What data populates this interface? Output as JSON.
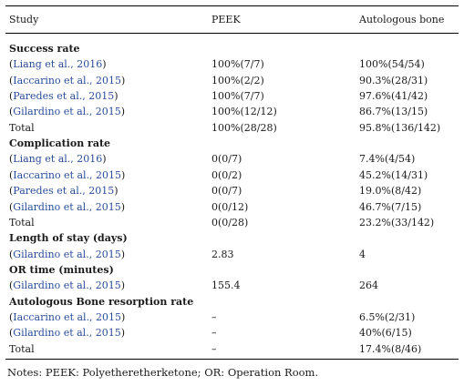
{
  "table": {
    "headers": [
      "Study",
      "PEEK",
      "Autologous bone"
    ],
    "sections": [
      {
        "title": "Success rate",
        "rows": [
          {
            "study": "Liang et al., 2016",
            "cite": true,
            "peek": "100%(7/7)",
            "bone": "100%(54/54)"
          },
          {
            "study": "Iaccarino et al., 2015",
            "cite": true,
            "peek": "100%(2/2)",
            "bone": "90.3%(28/31)"
          },
          {
            "study": "Paredes et al., 2015",
            "cite": true,
            "peek": "100%(7/7)",
            "bone": "97.6%(41/42)"
          },
          {
            "study": "Gilardino et al., 2015",
            "cite": true,
            "peek": "100%(12/12)",
            "bone": "86.7%(13/15)"
          },
          {
            "study": "Total",
            "cite": false,
            "peek": "100%(28/28)",
            "bone": "95.8%(136/142)"
          }
        ]
      },
      {
        "title": "Complication rate",
        "rows": [
          {
            "study": "Liang et al., 2016",
            "cite": true,
            "peek": "0(0/7)",
            "bone": "7.4%(4/54)"
          },
          {
            "study": "Iaccarino et al., 2015",
            "cite": true,
            "peek": "0(0/2)",
            "bone": "45.2%(14/31)"
          },
          {
            "study": "Paredes et al., 2015",
            "cite": true,
            "peek": "0(0/7)",
            "bone": "19.0%(8/42)"
          },
          {
            "study": "Gilardino et al., 2015",
            "cite": true,
            "peek": "0(0/12)",
            "bone": "46.7%(7/15)"
          },
          {
            "study": "Total",
            "cite": false,
            "peek": "0(0/28)",
            "bone": "23.2%(33/142)"
          }
        ]
      },
      {
        "title": "Length of stay (days)",
        "rows": [
          {
            "study": "Gilardino et al., 2015",
            "cite": true,
            "peek": "2.83",
            "bone": "4"
          }
        ]
      },
      {
        "title": "OR time (minutes)",
        "rows": [
          {
            "study": "Gilardino et al., 2015",
            "cite": true,
            "peek": "155.4",
            "bone": "264"
          }
        ]
      },
      {
        "title": "Autologous Bone resorption rate",
        "rows": [
          {
            "study": "Iaccarino et al., 2015",
            "cite": true,
            "peek": "–",
            "bone": "6.5%(2/31)"
          },
          {
            "study": "Gilardino et al., 2015",
            "cite": true,
            "peek": "–",
            "bone": "40%(6/15)"
          },
          {
            "study": "Total",
            "cite": false,
            "peek": "–",
            "bone": "17.4%(8/46)"
          }
        ]
      }
    ]
  },
  "notes": "Notes: PEEK: Polyetheretherketone; OR: Operation Room."
}
